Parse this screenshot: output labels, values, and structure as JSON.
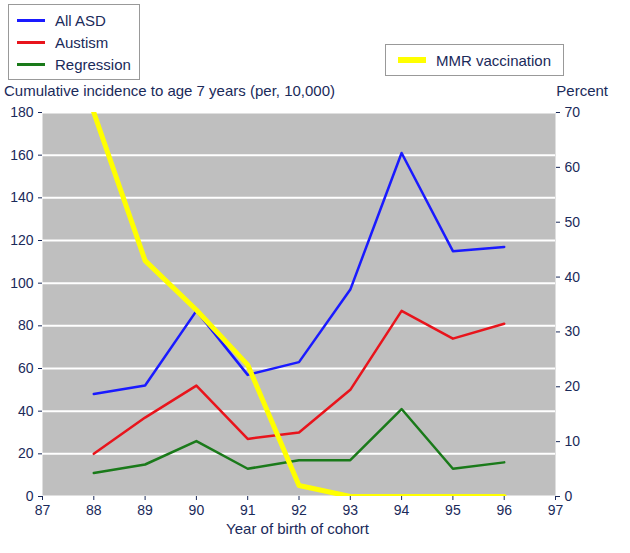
{
  "chart_data": {
    "type": "line",
    "x_label": "Year of birth of cohort",
    "y_label": "Cumulative incidence to age 7 years (per, 10,000)",
    "y2_label": "Percent",
    "x": [
      88,
      89,
      90,
      91,
      92,
      93,
      94,
      95,
      96
    ],
    "series": [
      {
        "name": "All ASD",
        "color": "#1a1aff",
        "values": [
          48,
          52,
          87,
          57,
          63,
          97,
          161,
          115,
          117
        ]
      },
      {
        "name": "Austism",
        "color": "#e8141c",
        "values": [
          20,
          37,
          52,
          27,
          30,
          50,
          87,
          74,
          81
        ]
      },
      {
        "name": "Regression",
        "color": "#1a7a1a",
        "values": [
          11,
          15,
          26,
          13,
          17,
          17,
          41,
          13,
          16
        ]
      },
      {
        "name": "MMR vaccination",
        "color": "#ffff00",
        "axis": "y2",
        "values": [
          70,
          43,
          34,
          24,
          2,
          0,
          0,
          0,
          0
        ]
      }
    ],
    "xlim": [
      87,
      97
    ],
    "xticks": [
      87,
      88,
      89,
      90,
      91,
      92,
      93,
      94,
      95,
      96,
      97
    ],
    "ylim": [
      0,
      180
    ],
    "yticks": [
      0,
      20,
      40,
      60,
      80,
      100,
      120,
      140,
      160,
      180
    ],
    "y2lim": [
      0,
      70
    ],
    "y2ticks": [
      0,
      10,
      20,
      30,
      40,
      50,
      60,
      70
    ],
    "grid": true,
    "legend": "top"
  }
}
